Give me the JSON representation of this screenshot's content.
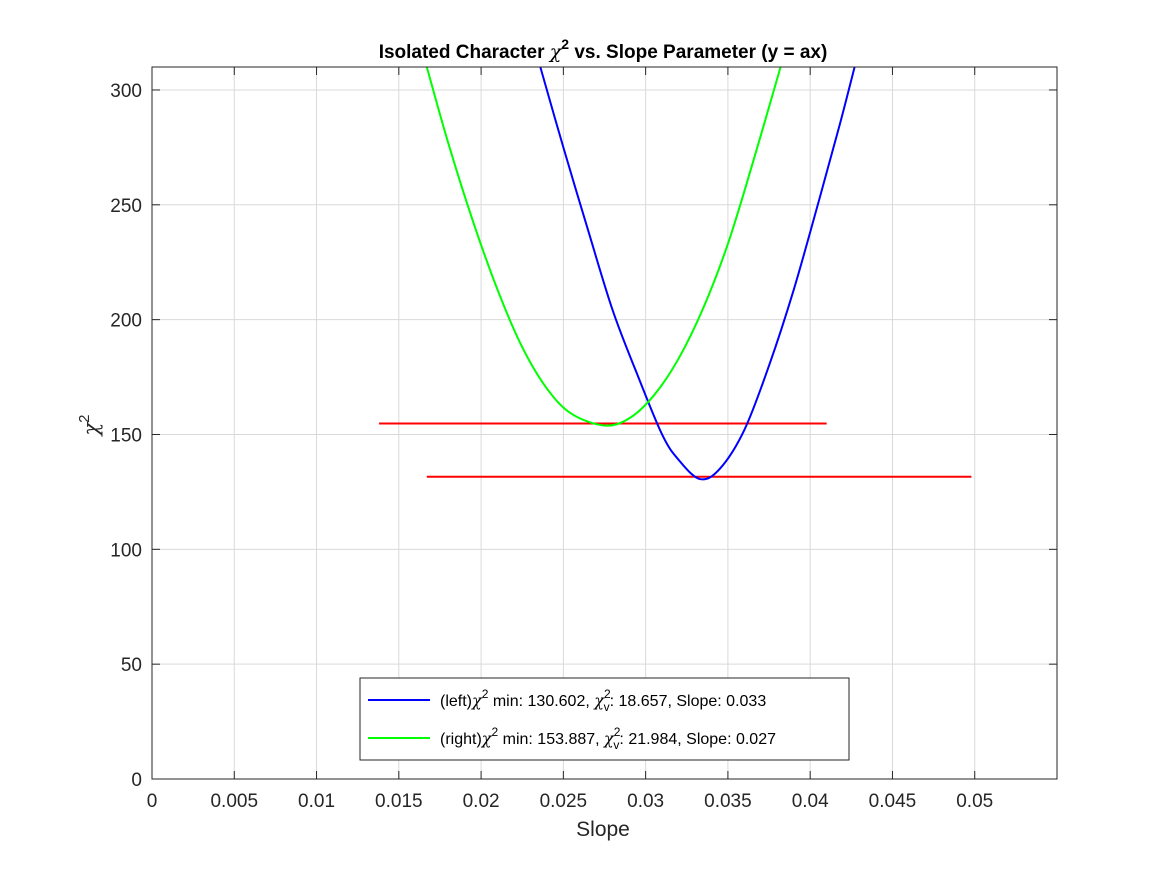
{
  "chart_data": {
    "type": "line",
    "title": "Isolated Character χ² vs. Slope Parameter (y = ax)",
    "title_parts": {
      "before": "Isolated Character ",
      "chi": "χ",
      "sup": "2",
      "after": " vs. Slope Parameter (y = ax)"
    },
    "xlabel": "Slope",
    "ylabel": "χ²",
    "ylabel_parts": {
      "chi": "χ",
      "sup": "2"
    },
    "xlim": [
      0,
      0.055
    ],
    "ylim": [
      0,
      310
    ],
    "xticks": [
      0,
      0.005,
      0.01,
      0.015,
      0.02,
      0.025,
      0.03,
      0.035,
      0.04,
      0.045,
      0.05
    ],
    "xtick_labels": [
      "0",
      "0.005",
      "0.01",
      "0.015",
      "0.02",
      "0.025",
      "0.03",
      "0.035",
      "0.04",
      "0.045",
      "0.05"
    ],
    "yticks": [
      0,
      50,
      100,
      150,
      200,
      250,
      300
    ],
    "ytick_labels": [
      "0",
      "50",
      "100",
      "150",
      "200",
      "250",
      "300"
    ],
    "grid": true,
    "legend_position": "bottom-center",
    "series": [
      {
        "name": "(left)χ² min: 130.602, χᵥ²: 18.657, Slope: 0.033",
        "legend_parts": {
          "prefix": "(left)",
          "chi_min": "130.602",
          "chi_v": "18.657",
          "slope": "0.033"
        },
        "color": "#0000ff",
        "x": [
          0.0236,
          0.025,
          0.0265,
          0.028,
          0.0295,
          0.031,
          0.032,
          0.0333,
          0.0345,
          0.036,
          0.0375,
          0.039,
          0.0405,
          0.0418,
          0.0427
        ],
        "y": [
          310,
          275,
          239,
          204,
          176,
          150,
          139,
          130.6,
          135,
          152,
          180,
          213,
          251,
          285,
          310
        ]
      },
      {
        "name": "(right)χ² min: 153.887, χᵥ²: 21.984, Slope: 0.027",
        "legend_parts": {
          "prefix": "(right)",
          "chi_min": "153.887",
          "chi_v": "21.984",
          "slope": "0.027"
        },
        "color": "#00ff00",
        "x": [
          0.0167,
          0.018,
          0.0195,
          0.021,
          0.0225,
          0.024,
          0.0255,
          0.0275,
          0.029,
          0.0305,
          0.032,
          0.0335,
          0.035,
          0.0365,
          0.0382
        ],
        "y": [
          310,
          277,
          243,
          213,
          188,
          170,
          159,
          153.9,
          157,
          167,
          183,
          205,
          233,
          268,
          310
        ]
      }
    ],
    "reference_lines": [
      {
        "color": "#ff0000",
        "x": [
          0.0138,
          0.041
        ],
        "y": [
          154.8,
          154.8
        ]
      },
      {
        "color": "#ff0000",
        "x": [
          0.0167,
          0.0498
        ],
        "y": [
          131.6,
          131.6
        ]
      }
    ]
  }
}
